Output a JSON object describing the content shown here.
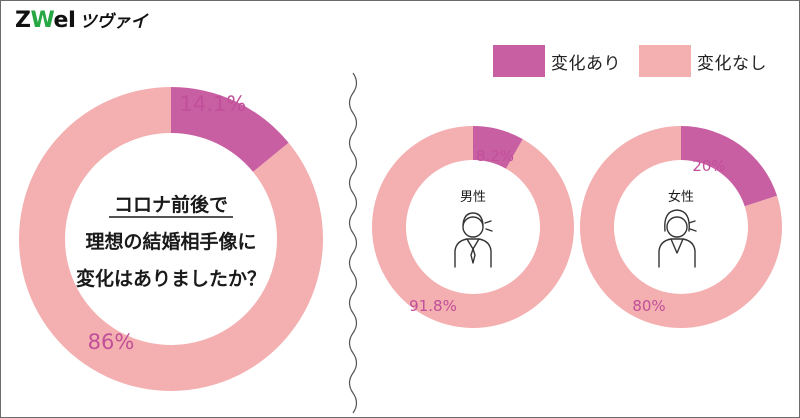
{
  "logo": {
    "mark_prefix": "Z",
    "mark_accent": "W",
    "mark_suffix": "eI",
    "kana": "ツヴァイ"
  },
  "legend": [
    {
      "label": "変化あり",
      "color": "#c95fa3"
    },
    {
      "label": "変化なし",
      "color": "#f4afb0"
    }
  ],
  "question": [
    "コロナ前後で",
    "理想の結婚相手像に",
    "変化はありましたか？"
  ],
  "colors": {
    "changed": "#c95fa3",
    "unchanged": "#f4afb0",
    "text_pct": "#c14f99",
    "divider": "#555555"
  },
  "chart_data": [
    {
      "type": "pie",
      "title": "",
      "categories": [
        "変化あり",
        "変化なし"
      ],
      "values": [
        14.1,
        86
      ],
      "labels": [
        "14.1%",
        "86%"
      ],
      "center_label": ""
    },
    {
      "type": "pie",
      "title": "",
      "categories": [
        "変化あり",
        "変化なし"
      ],
      "values": [
        8.2,
        91.8
      ],
      "labels": [
        "8.2%",
        "91.8%"
      ],
      "center_label": "男性"
    },
    {
      "type": "pie",
      "title": "",
      "categories": [
        "変化あり",
        "変化なし"
      ],
      "values": [
        20,
        80
      ],
      "labels": [
        "20%",
        "80%"
      ],
      "center_label": "女性"
    }
  ]
}
